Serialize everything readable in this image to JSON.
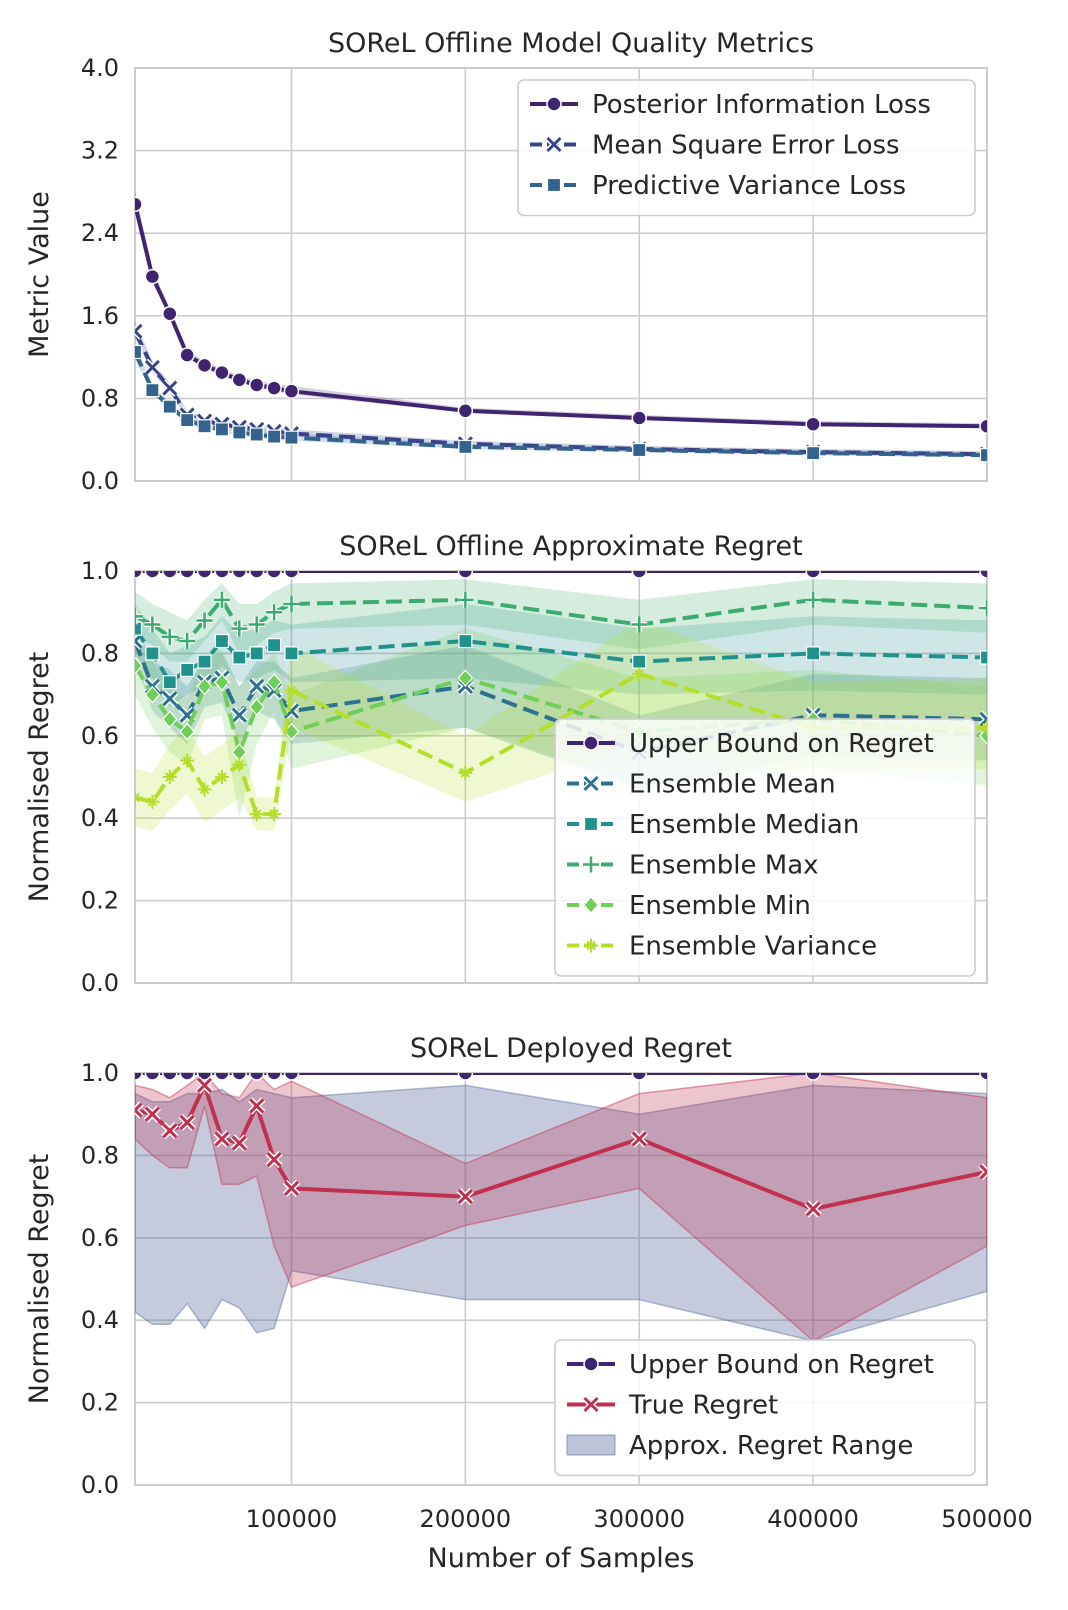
{
  "chart_data": [
    {
      "type": "line",
      "title": "SOReL Offline Model Quality Metrics",
      "xlabel": "",
      "ylabel": "Metric Value",
      "ylim": [
        0,
        4
      ],
      "xlim": [
        10000,
        500000
      ],
      "yticks": [
        "0.0",
        "0.8",
        "1.6",
        "2.4",
        "3.2",
        "4.0"
      ],
      "legend_position": "top-right",
      "x": [
        10000,
        20000,
        30000,
        40000,
        50000,
        60000,
        70000,
        80000,
        90000,
        100000,
        200000,
        300000,
        400000,
        500000
      ],
      "series": [
        {
          "name": "Posterior Information Loss",
          "color": "#3f2470",
          "dash": "solid",
          "marker": "circle",
          "values": [
            2.68,
            1.98,
            1.62,
            1.22,
            1.12,
            1.05,
            0.98,
            0.93,
            0.9,
            0.87,
            0.68,
            0.61,
            0.55,
            0.53
          ],
          "lower": [
            2.6,
            1.93,
            1.58,
            1.19,
            1.09,
            1.02,
            0.95,
            0.9,
            0.87,
            0.84,
            0.66,
            0.59,
            0.53,
            0.51
          ],
          "upper": [
            2.82,
            2.05,
            1.67,
            1.27,
            1.16,
            1.09,
            1.02,
            0.97,
            0.94,
            0.92,
            0.71,
            0.64,
            0.58,
            0.56
          ]
        },
        {
          "name": "Mean Square Error Loss",
          "color": "#38448a",
          "dash": "dashed",
          "marker": "x",
          "values": [
            1.45,
            1.1,
            0.9,
            0.64,
            0.58,
            0.55,
            0.52,
            0.5,
            0.48,
            0.46,
            0.36,
            0.31,
            0.28,
            0.26
          ],
          "lower": [
            1.38,
            1.05,
            0.86,
            0.61,
            0.55,
            0.52,
            0.49,
            0.47,
            0.45,
            0.43,
            0.34,
            0.29,
            0.26,
            0.24
          ],
          "upper": [
            1.55,
            1.16,
            0.95,
            0.68,
            0.62,
            0.59,
            0.56,
            0.54,
            0.52,
            0.5,
            0.39,
            0.34,
            0.31,
            0.29
          ]
        },
        {
          "name": "Predictive Variance Loss",
          "color": "#33638d",
          "dash": "dashed",
          "marker": "square",
          "values": [
            1.25,
            0.88,
            0.72,
            0.59,
            0.53,
            0.5,
            0.47,
            0.45,
            0.43,
            0.42,
            0.33,
            0.3,
            0.27,
            0.25
          ],
          "lower": [
            1.18,
            0.84,
            0.69,
            0.56,
            0.5,
            0.47,
            0.44,
            0.42,
            0.4,
            0.39,
            0.31,
            0.28,
            0.25,
            0.23
          ],
          "upper": [
            1.33,
            0.93,
            0.76,
            0.63,
            0.57,
            0.54,
            0.51,
            0.49,
            0.47,
            0.46,
            0.36,
            0.33,
            0.3,
            0.28
          ]
        }
      ]
    },
    {
      "type": "line",
      "title": "SOReL Offline Approximate Regret",
      "xlabel": "",
      "ylabel": "Normalised Regret",
      "ylim": [
        0,
        1
      ],
      "xlim": [
        10000,
        500000
      ],
      "yticks": [
        "0.0",
        "0.2",
        "0.4",
        "0.6",
        "0.8",
        "1.0"
      ],
      "legend_position": "center-right",
      "x": [
        10000,
        20000,
        30000,
        40000,
        50000,
        60000,
        70000,
        80000,
        90000,
        100000,
        200000,
        300000,
        400000,
        500000
      ],
      "series": [
        {
          "name": "Upper Bound on Regret",
          "color": "#3f2470",
          "dash": "solid",
          "marker": "circle",
          "values": [
            1.0,
            1.0,
            1.0,
            1.0,
            1.0,
            1.0,
            1.0,
            1.0,
            1.0,
            1.0,
            1.0,
            1.0,
            1.0,
            1.0
          ]
        },
        {
          "name": "Ensemble Mean",
          "color": "#2c718e",
          "dash": "dashed",
          "marker": "x",
          "values": [
            0.83,
            0.72,
            0.69,
            0.65,
            0.73,
            0.74,
            0.65,
            0.72,
            0.71,
            0.66,
            0.72,
            0.56,
            0.65,
            0.64
          ],
          "lower": [
            0.78,
            0.66,
            0.62,
            0.58,
            0.67,
            0.68,
            0.58,
            0.66,
            0.64,
            0.58,
            0.62,
            0.47,
            0.55,
            0.54
          ],
          "upper": [
            0.88,
            0.78,
            0.76,
            0.72,
            0.79,
            0.8,
            0.72,
            0.78,
            0.78,
            0.74,
            0.82,
            0.65,
            0.75,
            0.74
          ]
        },
        {
          "name": "Ensemble Median",
          "color": "#21918c",
          "dash": "dashed",
          "marker": "square",
          "values": [
            0.86,
            0.8,
            0.73,
            0.76,
            0.78,
            0.83,
            0.79,
            0.8,
            0.82,
            0.8,
            0.83,
            0.78,
            0.8,
            0.79
          ],
          "lower": [
            0.8,
            0.74,
            0.67,
            0.7,
            0.72,
            0.77,
            0.73,
            0.74,
            0.76,
            0.73,
            0.74,
            0.7,
            0.71,
            0.7
          ],
          "upper": [
            0.92,
            0.86,
            0.8,
            0.82,
            0.84,
            0.89,
            0.85,
            0.86,
            0.88,
            0.87,
            0.92,
            0.86,
            0.89,
            0.88
          ]
        },
        {
          "name": "Ensemble Max",
          "color": "#3cab6f",
          "dash": "dashed",
          "marker": "plus",
          "values": [
            0.89,
            0.87,
            0.84,
            0.83,
            0.88,
            0.93,
            0.86,
            0.87,
            0.9,
            0.92,
            0.93,
            0.87,
            0.93,
            0.91
          ],
          "lower": [
            0.84,
            0.82,
            0.78,
            0.78,
            0.83,
            0.88,
            0.8,
            0.82,
            0.85,
            0.86,
            0.87,
            0.81,
            0.87,
            0.85
          ],
          "upper": [
            0.95,
            0.92,
            0.9,
            0.88,
            0.93,
            0.97,
            0.92,
            0.92,
            0.95,
            0.97,
            0.98,
            0.93,
            0.98,
            0.97
          ]
        },
        {
          "name": "Ensemble Min",
          "color": "#6ece58",
          "dash": "dashed",
          "marker": "diamond",
          "values": [
            0.77,
            0.7,
            0.64,
            0.61,
            0.72,
            0.73,
            0.56,
            0.67,
            0.73,
            0.61,
            0.74,
            0.61,
            0.64,
            0.6
          ],
          "lower": [
            0.7,
            0.62,
            0.56,
            0.53,
            0.64,
            0.65,
            0.4,
            0.58,
            0.66,
            0.52,
            0.62,
            0.48,
            0.52,
            0.48
          ],
          "upper": [
            0.84,
            0.78,
            0.72,
            0.69,
            0.8,
            0.81,
            0.72,
            0.76,
            0.8,
            0.7,
            0.86,
            0.74,
            0.76,
            0.72
          ]
        },
        {
          "name": "Ensemble Variance",
          "color": "#b5de2b",
          "dash": "dashed",
          "marker": "star",
          "values": [
            0.45,
            0.44,
            0.5,
            0.54,
            0.47,
            0.5,
            0.53,
            0.41,
            0.41,
            0.71,
            0.51,
            0.75,
            0.62,
            0.62
          ],
          "lower": [
            0.38,
            0.37,
            0.42,
            0.46,
            0.39,
            0.42,
            0.45,
            0.37,
            0.37,
            0.62,
            0.44,
            0.58,
            0.5,
            0.52
          ],
          "upper": [
            0.52,
            0.51,
            0.58,
            0.62,
            0.55,
            0.58,
            0.61,
            0.45,
            0.45,
            0.82,
            0.6,
            0.88,
            0.73,
            0.74
          ]
        }
      ]
    },
    {
      "type": "line",
      "title": "SOReL Deployed Regret",
      "xlabel": "Number of Samples",
      "ylabel": "Normalised Regret",
      "ylim": [
        0,
        1
      ],
      "xlim": [
        10000,
        500000
      ],
      "yticks": [
        "0.0",
        "0.2",
        "0.4",
        "0.6",
        "0.8",
        "1.0"
      ],
      "xticks": [
        "100000",
        "200000",
        "300000",
        "400000",
        "500000"
      ],
      "legend_position": "bottom-right",
      "x": [
        10000,
        20000,
        30000,
        40000,
        50000,
        60000,
        70000,
        80000,
        90000,
        100000,
        200000,
        300000,
        400000,
        500000
      ],
      "series": [
        {
          "name": "Upper Bound on Regret",
          "color": "#3f2470",
          "dash": "solid",
          "marker": "circle",
          "values": [
            1.0,
            1.0,
            1.0,
            1.0,
            1.0,
            1.0,
            1.0,
            1.0,
            1.0,
            1.0,
            1.0,
            1.0,
            1.0,
            1.0
          ]
        },
        {
          "name": "True Regret",
          "color": "#c0304f",
          "dash": "solid",
          "marker": "x",
          "values": [
            0.91,
            0.9,
            0.86,
            0.88,
            0.97,
            0.84,
            0.83,
            0.92,
            0.79,
            0.72,
            0.7,
            0.84,
            0.67,
            0.76
          ],
          "lower": [
            0.84,
            0.8,
            0.77,
            0.77,
            0.92,
            0.73,
            0.73,
            0.75,
            0.58,
            0.48,
            0.63,
            0.72,
            0.35,
            0.58
          ],
          "upper": [
            0.97,
            0.96,
            0.94,
            0.97,
            1.0,
            0.95,
            0.94,
            1.0,
            0.96,
            0.98,
            0.78,
            0.95,
            1.0,
            0.94
          ]
        }
      ],
      "band": {
        "name": "Approx. Regret Range",
        "color": "#5a6a9e",
        "lower": [
          0.42,
          0.39,
          0.39,
          0.44,
          0.38,
          0.45,
          0.43,
          0.37,
          0.38,
          0.52,
          0.45,
          0.45,
          0.35,
          0.47
        ],
        "upper": [
          0.95,
          0.93,
          0.93,
          0.95,
          0.95,
          0.96,
          0.93,
          0.96,
          0.95,
          0.94,
          0.97,
          0.9,
          0.97,
          0.95
        ]
      }
    }
  ]
}
